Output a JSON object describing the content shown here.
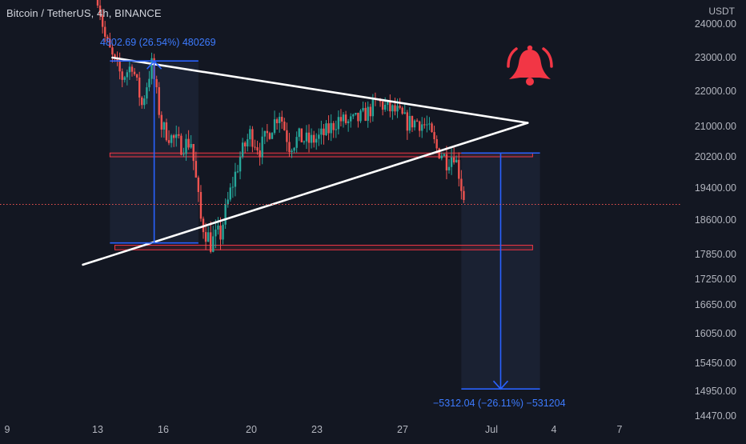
{
  "header": {
    "title": "Bitcoin / TetherUS, 4h, BINANCE",
    "currency": "USDT"
  },
  "colors": {
    "background": "#131722",
    "up": "#26a69a",
    "down": "#ef5350",
    "measure": "#2962ff",
    "zone": "#f23645",
    "trendline": "#ffffff",
    "alert": "#f23645"
  },
  "alert_icon": "bell-icon",
  "chart_data": {
    "type": "candlestick",
    "symbol": "BTCUSDT",
    "exchange": "BINANCE",
    "interval": "4h",
    "current_price": 18990,
    "y_ticks": [
      24000,
      23000,
      22000,
      21000,
      20200,
      19400,
      18600,
      17850,
      17250,
      16650,
      16050,
      15450,
      14950,
      14470
    ],
    "y_tick_labels": [
      "24000.00",
      "23000.00",
      "22000.00",
      "21000.00",
      "20200.00",
      "19400.00",
      "18600.00",
      "17850.00",
      "17250.00",
      "16650.00",
      "16050.00",
      "15450.00",
      "14950.00",
      "14470.00"
    ],
    "x_tick_labels": [
      "9",
      "13",
      "16",
      "20",
      "23",
      "27",
      "Jul",
      "4",
      "7"
    ],
    "price_path": [
      [
        0,
        24800
      ],
      [
        3,
        23600
      ],
      [
        6,
        23000
      ],
      [
        10,
        22400
      ],
      [
        14,
        22800
      ],
      [
        18,
        21600
      ],
      [
        22,
        22800
      ],
      [
        26,
        21000
      ],
      [
        30,
        20700
      ],
      [
        34,
        20500
      ],
      [
        38,
        20600
      ],
      [
        42,
        18600
      ],
      [
        46,
        18100
      ],
      [
        50,
        18300
      ],
      [
        54,
        19300
      ],
      [
        58,
        20200
      ],
      [
        62,
        20800
      ],
      [
        66,
        20400
      ],
      [
        70,
        20900
      ],
      [
        74,
        21400
      ],
      [
        78,
        20500
      ],
      [
        82,
        20700
      ],
      [
        86,
        20600
      ],
      [
        90,
        20700
      ],
      [
        94,
        20900
      ],
      [
        98,
        21200
      ],
      [
        102,
        21100
      ],
      [
        106,
        21200
      ],
      [
        110,
        21400
      ],
      [
        114,
        21700
      ],
      [
        118,
        21500
      ],
      [
        122,
        21400
      ],
      [
        126,
        21100
      ],
      [
        130,
        21150
      ],
      [
        134,
        21000
      ],
      [
        138,
        20400
      ],
      [
        140,
        20300
      ],
      [
        142,
        20100
      ],
      [
        145,
        20300
      ],
      [
        147,
        19800
      ],
      [
        149,
        19100
      ]
    ],
    "trendlines": [
      {
        "name": "upper-resistance",
        "from": [
          6,
          23000
        ],
        "to": [
          175,
          21100
        ]
      },
      {
        "name": "lower-support",
        "from": [
          -6,
          17600
        ],
        "to": [
          175,
          21100
        ]
      }
    ],
    "zones": [
      {
        "name": "resistance-zone",
        "from_bar": 5,
        "to_bar": 177,
        "low": 20200,
        "high": 20300
      },
      {
        "name": "support-zone",
        "from_bar": 7,
        "to_bar": 177,
        "low": 17950,
        "high": 18050
      }
    ],
    "measurements": [
      {
        "name": "rally-measure",
        "from_bar": 5,
        "to_bar": 41,
        "start_price": 18100,
        "end_price": 22900,
        "label": "4802.69 (26.54%) 480269"
      },
      {
        "name": "target-measure",
        "from_bar": 148,
        "to_bar": 180,
        "start_price": 20300,
        "end_price": 14990,
        "label": "−5312.04 (−26.11%) −531204"
      }
    ]
  }
}
